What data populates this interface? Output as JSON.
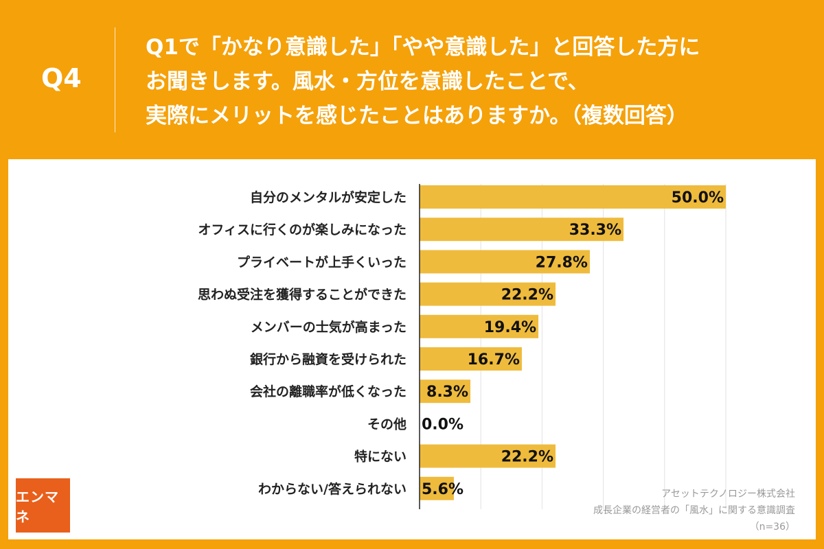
{
  "header": {
    "q_label": "Q4",
    "question_lines": [
      "Q1で「かなり意識した」「やや意識した」と回答した方に",
      "お聞きします。風水・方位を意識したことで、",
      "実際にメリットを感じたことはありますか。（複数回答）"
    ]
  },
  "chart_data": {
    "type": "bar",
    "orientation": "horizontal",
    "categories": [
      "自分のメンタルが安定した",
      "オフィスに行くのが楽しみになった",
      "プライベートが上手くいった",
      "思わぬ受注を獲得することができた",
      "メンバーの士気が高まった",
      "銀行から融資を受けられた",
      "会社の離職率が低くなった",
      "その他",
      "特にない",
      "わからない/答えられない"
    ],
    "values": [
      50.0,
      33.3,
      27.8,
      22.2,
      19.4,
      16.7,
      8.3,
      0.0,
      22.2,
      5.6
    ],
    "value_labels": [
      "50.0%",
      "33.3%",
      "27.8%",
      "22.2%",
      "19.4%",
      "16.7%",
      "8.3%",
      "0.0%",
      "22.2%",
      "5.6%"
    ],
    "xlim": [
      0,
      50
    ],
    "grid": true,
    "bar_color": "#efbb3d"
  },
  "logo": {
    "text": "エンマネ"
  },
  "source": {
    "lines": [
      "アセットテクノロジー株式会社",
      "成長企業の経営者の「風水」に関する意識調査",
      "（n=36）"
    ]
  }
}
